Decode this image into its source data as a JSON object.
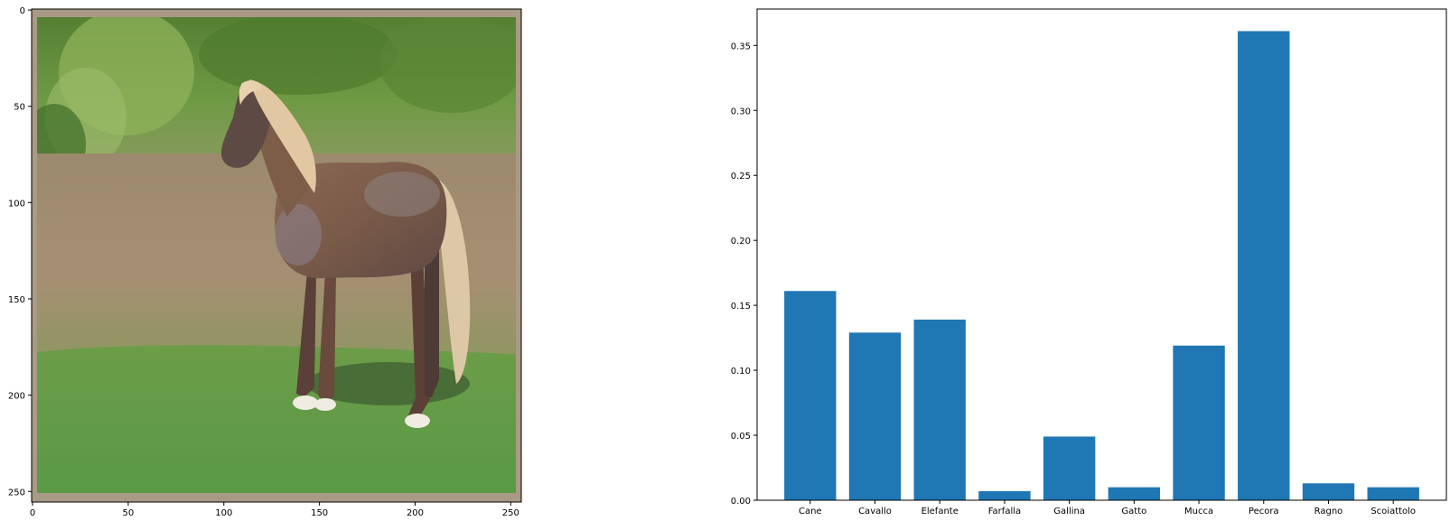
{
  "chart_data": [
    {
      "type": "image",
      "title": "",
      "xlabel": "",
      "ylabel": "",
      "xlim": [
        -0.5,
        255.5
      ],
      "ylim": [
        255.5,
        -0.5
      ],
      "xticks": [
        0,
        50,
        100,
        150,
        200,
        250
      ],
      "yticks": [
        0,
        50,
        100,
        150,
        200,
        250
      ],
      "xtick_labels": [
        "0",
        "50",
        "100",
        "150",
        "200",
        "250"
      ],
      "ytick_labels": [
        "0",
        "50",
        "100",
        "150",
        "200",
        "250"
      ],
      "colors": {
        "frame": "#a89a86",
        "tree_dark": "#4a7a2a",
        "tree_light": "#7fb04a",
        "grass_dry": "#a08a6c",
        "grass_green": "#5f9a40",
        "horse_body": "#7d5c48",
        "horse_mane": "#e2c8a2",
        "horse_shadow": "#3f5e30"
      }
    },
    {
      "type": "bar",
      "title": "",
      "xlabel": "",
      "ylabel": "",
      "categories": [
        "Cane",
        "Cavallo",
        "Elefante",
        "Farfalla",
        "Gallina",
        "Gatto",
        "Mucca",
        "Pecora",
        "Ragno",
        "Scoiattolo"
      ],
      "values": [
        0.161,
        0.129,
        0.139,
        0.007,
        0.049,
        0.01,
        0.119,
        0.361,
        0.013,
        0.01
      ],
      "ylim": [
        0,
        0.378
      ],
      "yticks": [
        0.0,
        0.05,
        0.1,
        0.15,
        0.2,
        0.25,
        0.3,
        0.35
      ],
      "ytick_labels": [
        "0.00",
        "0.05",
        "0.10",
        "0.15",
        "0.20",
        "0.25",
        "0.30",
        "0.35"
      ],
      "grid": false,
      "bar_color": "#1f77b4"
    }
  ]
}
